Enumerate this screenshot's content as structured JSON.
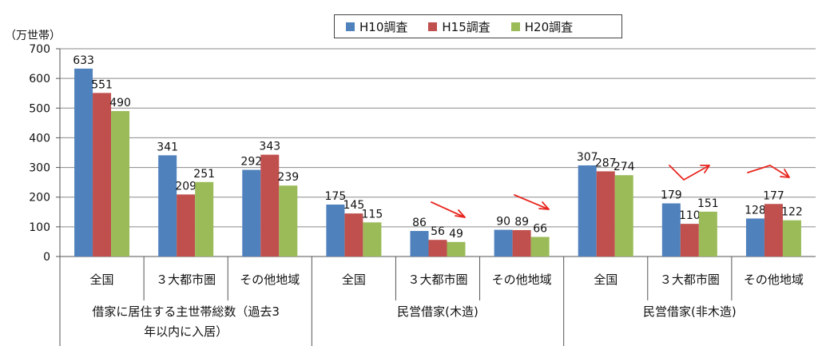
{
  "chart_data": {
    "type": "bar",
    "unit_label": "（万世帯）",
    "ylim": [
      0,
      700
    ],
    "yticks": [
      0,
      100,
      200,
      300,
      400,
      500,
      600,
      700
    ],
    "grid": true,
    "legend_position": "top-center",
    "series": [
      {
        "name": "H10調査",
        "color": "#4F81BD",
        "values": [
          633,
          341,
          292,
          175,
          86,
          90,
          307,
          179,
          128
        ]
      },
      {
        "name": "H15調査",
        "color": "#C0504D",
        "values": [
          551,
          209,
          343,
          145,
          56,
          89,
          287,
          110,
          177
        ]
      },
      {
        "name": "H20調査",
        "color": "#9BBB59",
        "values": [
          490,
          251,
          239,
          115,
          49,
          66,
          274,
          151,
          122
        ]
      }
    ],
    "categories": [
      "全国",
      "３大都市圏",
      "その他地域",
      "全国",
      "３大都市圏",
      "その他地域",
      "全国",
      "３大都市圏",
      "その他地域"
    ],
    "groups": [
      {
        "label_lines": [
          "借家に居住する主世帯総数（過去3",
          "年以内に入居）"
        ],
        "span": [
          0,
          3
        ]
      },
      {
        "label_lines": [
          "民営借家(木造)"
        ],
        "span": [
          3,
          6
        ]
      },
      {
        "label_lines": [
          "民営借家(非木造)"
        ],
        "span": [
          6,
          9
        ]
      }
    ]
  }
}
